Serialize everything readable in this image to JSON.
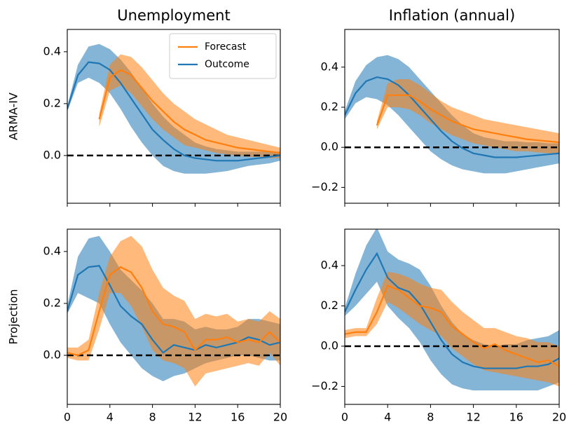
{
  "chart_data": [
    {
      "type": "line",
      "title": "Unemployment",
      "ylabel": "ARMA-IV",
      "legend": "upper right",
      "xlim": [
        0,
        20
      ],
      "xticks": [
        0,
        4,
        8,
        12,
        16,
        20
      ],
      "xtick_labels": false,
      "ylim": [
        -0.184,
        0.486
      ],
      "yticks": [
        {
          "value": 0,
          "label": "0.0"
        },
        0.2,
        0.4
      ],
      "reference_line": 0,
      "series": [
        {
          "name": "Outcome",
          "color": "#1f77b4",
          "x": [
            0,
            1,
            2,
            3,
            4,
            5,
            6,
            7,
            8,
            9,
            10,
            11,
            12,
            13,
            14,
            15,
            16,
            17,
            18,
            19,
            20
          ],
          "values": [
            0.18,
            0.31,
            0.36,
            0.355,
            0.33,
            0.28,
            0.22,
            0.16,
            0.1,
            0.06,
            0.025,
            0.0,
            -0.01,
            -0.015,
            -0.02,
            -0.02,
            -0.02,
            -0.015,
            -0.01,
            -0.005,
            0.0
          ],
          "lower": [
            0.17,
            0.28,
            0.3,
            0.28,
            0.24,
            0.18,
            0.11,
            0.05,
            0.0,
            -0.04,
            -0.06,
            -0.07,
            -0.07,
            -0.07,
            -0.065,
            -0.06,
            -0.05,
            -0.04,
            -0.035,
            -0.03,
            -0.02
          ],
          "upper": [
            0.19,
            0.35,
            0.42,
            0.43,
            0.41,
            0.37,
            0.32,
            0.26,
            0.2,
            0.15,
            0.11,
            0.08,
            0.05,
            0.035,
            0.025,
            0.02,
            0.015,
            0.015,
            0.015,
            0.015,
            0.015
          ]
        },
        {
          "name": "Forecast",
          "color": "#ff7f0e",
          "x": [
            3,
            4,
            5,
            6,
            7,
            8,
            9,
            10,
            11,
            12,
            13,
            14,
            15,
            16,
            17,
            18,
            19,
            20
          ],
          "values": [
            0.14,
            0.3,
            0.33,
            0.31,
            0.26,
            0.21,
            0.17,
            0.13,
            0.1,
            0.08,
            0.06,
            0.05,
            0.04,
            0.03,
            0.025,
            0.02,
            0.015,
            0.01
          ],
          "lower": [
            0.11,
            0.25,
            0.27,
            0.24,
            0.19,
            0.14,
            0.1,
            0.07,
            0.04,
            0.03,
            0.02,
            0.01,
            0.005,
            0.0,
            -0.005,
            -0.005,
            -0.01,
            -0.01
          ],
          "upper": [
            0.16,
            0.35,
            0.39,
            0.38,
            0.34,
            0.29,
            0.24,
            0.2,
            0.17,
            0.14,
            0.12,
            0.1,
            0.08,
            0.07,
            0.06,
            0.05,
            0.04,
            0.03
          ]
        }
      ]
    },
    {
      "type": "line",
      "title": "Inflation (annual)",
      "xlim": [
        0,
        20
      ],
      "xticks": [
        0,
        4,
        8,
        12,
        16,
        20
      ],
      "xtick_labels": false,
      "ylim": [
        -0.279,
        0.588
      ],
      "yticks": [
        {
          "value": -0.2,
          "label": "−0.2"
        },
        {
          "value": 0,
          "label": "0.0"
        },
        0.2,
        0.4
      ],
      "reference_line": 0,
      "series": [
        {
          "name": "Outcome",
          "color": "#1f77b4",
          "x": [
            0,
            1,
            2,
            3,
            4,
            5,
            6,
            7,
            8,
            9,
            10,
            11,
            12,
            13,
            14,
            15,
            16,
            17,
            18,
            19,
            20
          ],
          "values": [
            0.16,
            0.27,
            0.33,
            0.35,
            0.34,
            0.31,
            0.26,
            0.2,
            0.14,
            0.08,
            0.03,
            -0.005,
            -0.03,
            -0.04,
            -0.05,
            -0.05,
            -0.05,
            -0.045,
            -0.04,
            -0.035,
            -0.03
          ],
          "lower": [
            0.14,
            0.22,
            0.25,
            0.24,
            0.21,
            0.16,
            0.1,
            0.04,
            -0.02,
            -0.06,
            -0.09,
            -0.11,
            -0.12,
            -0.13,
            -0.13,
            -0.13,
            -0.12,
            -0.11,
            -0.1,
            -0.09,
            -0.08
          ],
          "upper": [
            0.18,
            0.33,
            0.41,
            0.45,
            0.46,
            0.44,
            0.4,
            0.34,
            0.28,
            0.22,
            0.16,
            0.11,
            0.07,
            0.05,
            0.04,
            0.03,
            0.03,
            0.025,
            0.025,
            0.02,
            0.02
          ]
        },
        {
          "name": "Forecast",
          "color": "#ff7f0e",
          "x": [
            3,
            4,
            5,
            6,
            7,
            8,
            9,
            10,
            11,
            12,
            13,
            14,
            15,
            16,
            17,
            18,
            19,
            20
          ],
          "values": [
            0.11,
            0.26,
            0.26,
            0.26,
            0.23,
            0.19,
            0.16,
            0.13,
            0.11,
            0.09,
            0.08,
            0.07,
            0.06,
            0.05,
            0.04,
            0.035,
            0.03,
            0.025
          ],
          "lower": [
            0.09,
            0.2,
            0.2,
            0.19,
            0.16,
            0.12,
            0.09,
            0.06,
            0.04,
            0.02,
            0.01,
            0.0,
            -0.01,
            -0.02,
            -0.02,
            -0.025,
            -0.03,
            -0.03
          ],
          "upper": [
            0.13,
            0.32,
            0.34,
            0.34,
            0.31,
            0.27,
            0.23,
            0.2,
            0.18,
            0.16,
            0.14,
            0.13,
            0.12,
            0.11,
            0.1,
            0.09,
            0.08,
            0.07
          ]
        }
      ]
    },
    {
      "type": "line",
      "ylabel": "Projection",
      "xlim": [
        0,
        20
      ],
      "xticks": [
        0,
        4,
        8,
        12,
        16,
        20
      ],
      "xtick_labels": true,
      "ylim": [
        -0.189,
        0.486
      ],
      "yticks": [
        {
          "value": 0,
          "label": "0.0"
        },
        0.2,
        0.4
      ],
      "reference_line": 0,
      "series": [
        {
          "name": "Outcome",
          "color": "#1f77b4",
          "x": [
            0,
            1,
            2,
            3,
            4,
            5,
            6,
            7,
            8,
            9,
            10,
            11,
            12,
            13,
            14,
            15,
            16,
            17,
            18,
            19,
            20
          ],
          "values": [
            0.17,
            0.31,
            0.34,
            0.345,
            0.27,
            0.19,
            0.15,
            0.12,
            0.06,
            0.01,
            0.04,
            0.03,
            0.02,
            0.04,
            0.03,
            0.04,
            0.05,
            0.07,
            0.06,
            0.04,
            0.05
          ],
          "lower": [
            0.16,
            0.24,
            0.22,
            0.2,
            0.12,
            0.05,
            0.0,
            -0.05,
            -0.08,
            -0.1,
            -0.08,
            -0.07,
            -0.05,
            -0.03,
            -0.02,
            -0.01,
            0.0,
            0.0,
            -0.01,
            -0.02,
            -0.02
          ],
          "upper": [
            0.19,
            0.38,
            0.45,
            0.46,
            0.4,
            0.33,
            0.29,
            0.25,
            0.2,
            0.14,
            0.14,
            0.13,
            0.1,
            0.11,
            0.1,
            0.1,
            0.11,
            0.14,
            0.14,
            0.13,
            0.12
          ]
        },
        {
          "name": "Forecast",
          "color": "#ff7f0e",
          "x": [
            0,
            1,
            2,
            3,
            4,
            5,
            6,
            7,
            8,
            9,
            10,
            11,
            12,
            13,
            14,
            15,
            16,
            17,
            18,
            19,
            20
          ],
          "values": [
            0.01,
            0.0,
            0.02,
            0.17,
            0.31,
            0.34,
            0.32,
            0.26,
            0.17,
            0.12,
            0.11,
            0.09,
            0.02,
            0.06,
            0.06,
            0.07,
            0.05,
            0.06,
            0.05,
            0.09,
            0.05
          ],
          "lower": [
            -0.01,
            -0.02,
            -0.02,
            0.1,
            0.24,
            0.24,
            0.19,
            0.11,
            0.02,
            -0.02,
            -0.03,
            -0.05,
            -0.12,
            -0.07,
            -0.06,
            -0.05,
            -0.04,
            -0.03,
            -0.04,
            0.01,
            -0.04
          ],
          "upper": [
            0.03,
            0.03,
            0.06,
            0.24,
            0.38,
            0.44,
            0.46,
            0.42,
            0.33,
            0.26,
            0.23,
            0.21,
            0.14,
            0.16,
            0.15,
            0.16,
            0.13,
            0.14,
            0.13,
            0.17,
            0.14
          ]
        }
      ]
    },
    {
      "type": "line",
      "xlim": [
        0,
        20
      ],
      "xticks": [
        0,
        4,
        8,
        12,
        16,
        20
      ],
      "xtick_labels": true,
      "ylim": [
        -0.289,
        0.581
      ],
      "yticks": [
        {
          "value": -0.2,
          "label": "−0.2"
        },
        {
          "value": 0,
          "label": "0.0"
        },
        0.2,
        0.4
      ],
      "reference_line": 0,
      "series": [
        {
          "name": "Outcome",
          "color": "#1f77b4",
          "x": [
            0,
            1,
            2,
            3,
            4,
            5,
            6,
            7,
            8,
            9,
            10,
            11,
            12,
            13,
            14,
            15,
            16,
            17,
            18,
            19,
            20
          ],
          "values": [
            0.17,
            0.28,
            0.38,
            0.46,
            0.34,
            0.29,
            0.27,
            0.21,
            0.12,
            0.03,
            -0.04,
            -0.08,
            -0.1,
            -0.11,
            -0.11,
            -0.11,
            -0.11,
            -0.1,
            -0.1,
            -0.09,
            -0.06
          ],
          "lower": [
            0.15,
            0.2,
            0.26,
            0.32,
            0.2,
            0.14,
            0.09,
            0.02,
            -0.07,
            -0.14,
            -0.19,
            -0.21,
            -0.22,
            -0.22,
            -0.22,
            -0.22,
            -0.22,
            -0.22,
            -0.22,
            -0.2,
            -0.18
          ],
          "upper": [
            0.19,
            0.36,
            0.5,
            0.59,
            0.47,
            0.43,
            0.41,
            0.38,
            0.3,
            0.2,
            0.12,
            0.06,
            0.03,
            0.01,
            0.0,
            0.01,
            0.01,
            0.03,
            0.04,
            0.05,
            0.08
          ]
        },
        {
          "name": "Forecast",
          "color": "#ff7f0e",
          "x": [
            0,
            1,
            2,
            3,
            4,
            5,
            6,
            7,
            8,
            9,
            10,
            11,
            12,
            13,
            14,
            15,
            16,
            17,
            18,
            19,
            20
          ],
          "values": [
            0.06,
            0.07,
            0.07,
            0.17,
            0.3,
            0.28,
            0.24,
            0.2,
            0.19,
            0.17,
            0.1,
            0.06,
            0.02,
            -0.01,
            0.01,
            -0.02,
            -0.04,
            -0.06,
            -0.08,
            -0.07,
            -0.1
          ],
          "lower": [
            0.04,
            0.05,
            0.05,
            0.11,
            0.22,
            0.19,
            0.15,
            0.11,
            0.08,
            0.05,
            -0.01,
            -0.05,
            -0.09,
            -0.12,
            -0.13,
            -0.14,
            -0.15,
            -0.16,
            -0.17,
            -0.18,
            -0.2
          ],
          "upper": [
            0.08,
            0.09,
            0.09,
            0.24,
            0.37,
            0.36,
            0.34,
            0.31,
            0.29,
            0.28,
            0.22,
            0.17,
            0.13,
            0.09,
            0.09,
            0.07,
            0.05,
            0.04,
            0.02,
            0.02,
            0.0
          ]
        }
      ]
    }
  ]
}
